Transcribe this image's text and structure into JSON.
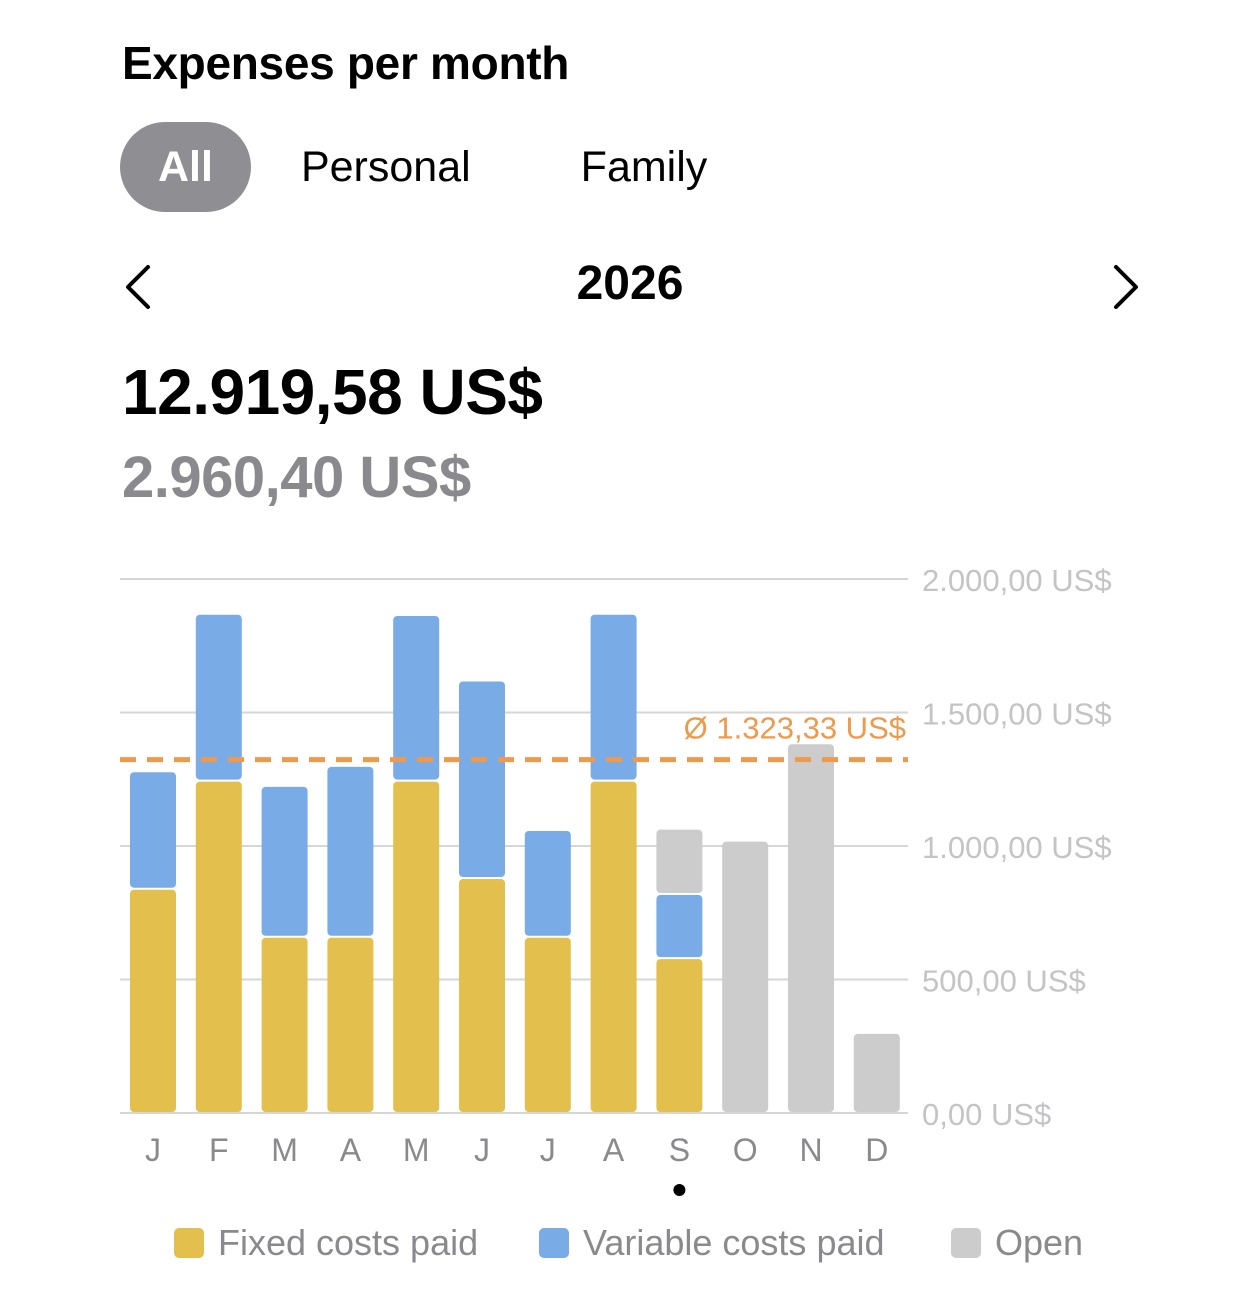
{
  "header": {
    "title": "Expenses per month"
  },
  "segments": {
    "items": [
      {
        "label": "All",
        "active": true
      },
      {
        "label": "Personal",
        "active": false
      },
      {
        "label": "Family",
        "active": false
      }
    ]
  },
  "year_nav": {
    "year": "2026",
    "prev_icon": "chevron-left-icon",
    "next_icon": "chevron-right-icon"
  },
  "summary": {
    "total": "12.919,58 US$",
    "secondary": "2.960,40 US$"
  },
  "colors": {
    "fixed": "#E3C04D",
    "variable": "#79ACE6",
    "open": "#CCCCCC",
    "average": "#EE9A4D"
  },
  "chart_data": {
    "type": "bar",
    "stacked": true,
    "categories": [
      "J",
      "F",
      "M",
      "A",
      "M",
      "J",
      "J",
      "A",
      "S",
      "O",
      "N",
      "D"
    ],
    "series": [
      {
        "name": "Fixed costs paid",
        "values": [
          840,
          1245,
          660,
          660,
          1245,
          880,
          660,
          1245,
          580,
          0,
          0,
          0
        ]
      },
      {
        "name": "Variable costs paid",
        "values": [
          440,
          625,
          565,
          640,
          620,
          740,
          400,
          625,
          240,
          0,
          0,
          0
        ]
      },
      {
        "name": "Open",
        "values": [
          0,
          0,
          0,
          0,
          0,
          0,
          0,
          0,
          245,
          1020,
          1385,
          300
        ]
      }
    ],
    "y_ticks": [
      "0,00 US$",
      "500,00 US$",
      "1.000,00 US$",
      "1.500,00 US$",
      "2.000,00 US$"
    ],
    "ylim": [
      0,
      2000
    ],
    "average": {
      "value": 1323.33,
      "label": "Ø 1.323,33 US$"
    },
    "selected_index": 8,
    "grid": true,
    "legend": "bottom"
  }
}
